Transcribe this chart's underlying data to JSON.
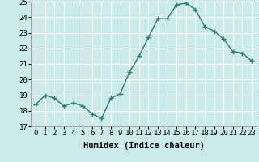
{
  "xlabel": "Humidex (Indice chaleur)",
  "x": [
    0,
    1,
    2,
    3,
    4,
    5,
    6,
    7,
    8,
    9,
    10,
    11,
    12,
    13,
    14,
    15,
    16,
    17,
    18,
    19,
    20,
    21,
    22,
    23
  ],
  "y": [
    18.4,
    19.0,
    18.8,
    18.3,
    18.5,
    18.3,
    17.8,
    17.5,
    18.8,
    19.1,
    20.5,
    21.5,
    22.7,
    23.9,
    23.9,
    24.8,
    24.9,
    24.5,
    23.4,
    23.1,
    22.6,
    21.8,
    21.7,
    21.2
  ],
  "line_color": "#2e7d6e",
  "marker": "+",
  "marker_size": 4,
  "bg_color": "#cceaea",
  "grid_color": "#ffffff",
  "ylim": [
    17,
    25
  ],
  "yticks": [
    17,
    18,
    19,
    20,
    21,
    22,
    23,
    24,
    25
  ],
  "xtick_labels": [
    "0",
    "1",
    "2",
    "3",
    "4",
    "5",
    "6",
    "7",
    "8",
    "9",
    "10",
    "11",
    "12",
    "13",
    "14",
    "15",
    "16",
    "17",
    "18",
    "19",
    "20",
    "21",
    "22",
    "23"
  ],
  "xlabel_fontsize": 7.5,
  "tick_fontsize": 6.5
}
